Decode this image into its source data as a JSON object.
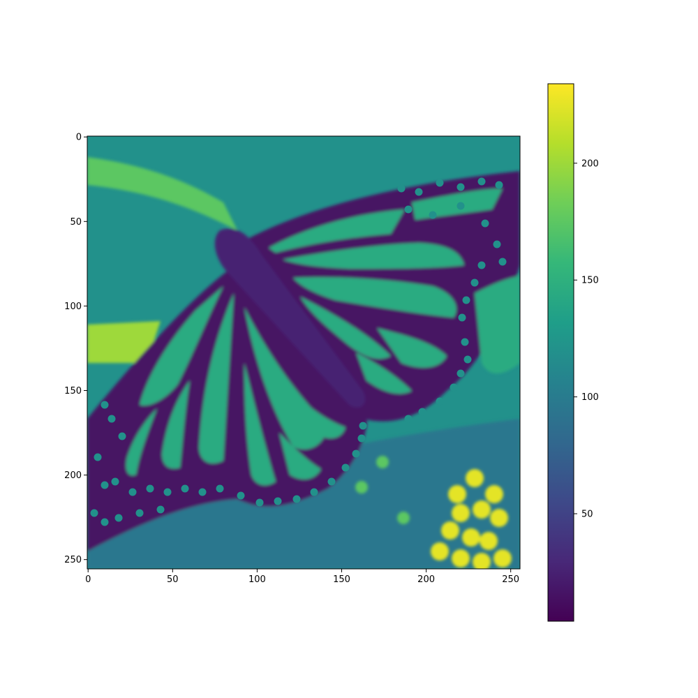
{
  "chart_data": {
    "type": "heatmap",
    "title": "",
    "xlabel": "",
    "ylabel": "",
    "colormap": "viridis",
    "colorbar_placement": "right",
    "grid": false,
    "image_size": [
      256,
      256
    ],
    "xlim": [
      0,
      255
    ],
    "ylim": [
      255,
      0
    ],
    "x_ticks": [
      0,
      50,
      100,
      150,
      200,
      250
    ],
    "y_ticks": [
      0,
      50,
      100,
      150,
      200,
      250
    ],
    "color_range": [
      4,
      234
    ],
    "colorbar_ticks": [
      50,
      100,
      150,
      200
    ],
    "values": {
      "background": 120,
      "wing_cell": 145,
      "wing_vein": 15,
      "wing_spot": 120,
      "body": 25,
      "stem": 175,
      "leaf_lower_left": 200,
      "flower": 225,
      "lower_leaf": 95
    }
  },
  "colors": {
    "viridis": [
      "#440154",
      "#482878",
      "#3e4989",
      "#31688e",
      "#26828e",
      "#1f9e89",
      "#35b779",
      "#6ece58",
      "#b5de2b",
      "#fde725"
    ]
  }
}
